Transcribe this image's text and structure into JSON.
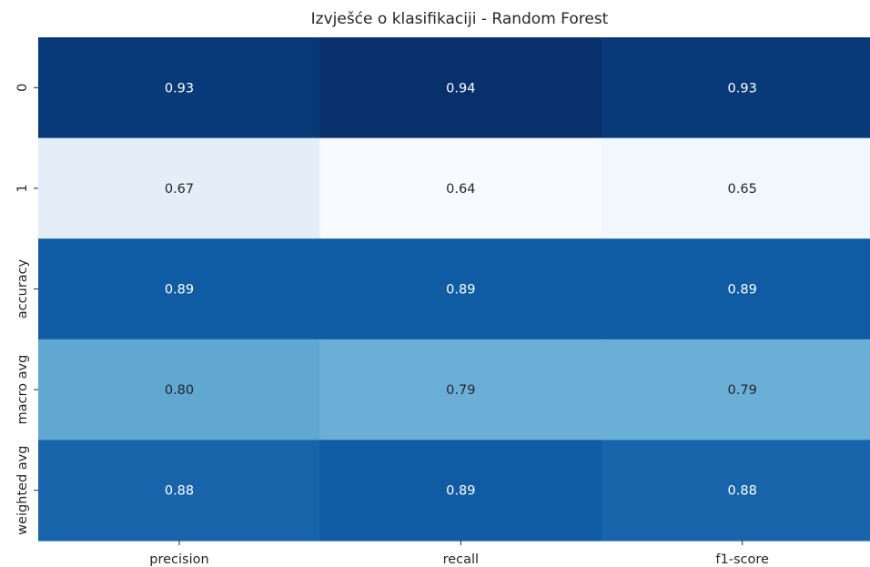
{
  "chart_data": {
    "type": "heatmap",
    "title": "Izvješće o klasifikaciji - Random Forest",
    "xlabel": "",
    "ylabel": "",
    "columns": [
      "precision",
      "recall",
      "f1-score"
    ],
    "rows": [
      "0",
      "1",
      "accuracy",
      "macro avg",
      "weighted avg"
    ],
    "values": [
      [
        0.93,
        0.94,
        0.93
      ],
      [
        0.67,
        0.64,
        0.65
      ],
      [
        0.89,
        0.89,
        0.89
      ],
      [
        0.8,
        0.79,
        0.79
      ],
      [
        0.88,
        0.89,
        0.88
      ]
    ],
    "value_labels": [
      [
        "0.93",
        "0.94",
        "0.93"
      ],
      [
        "0.67",
        "0.64",
        "0.65"
      ],
      [
        "0.89",
        "0.89",
        "0.89"
      ],
      [
        "0.80",
        "0.79",
        "0.79"
      ],
      [
        "0.88",
        "0.89",
        "0.88"
      ]
    ],
    "colormap": "Blues",
    "color_range": [
      0.64,
      0.94
    ],
    "colorbar": false,
    "grid": false
  }
}
